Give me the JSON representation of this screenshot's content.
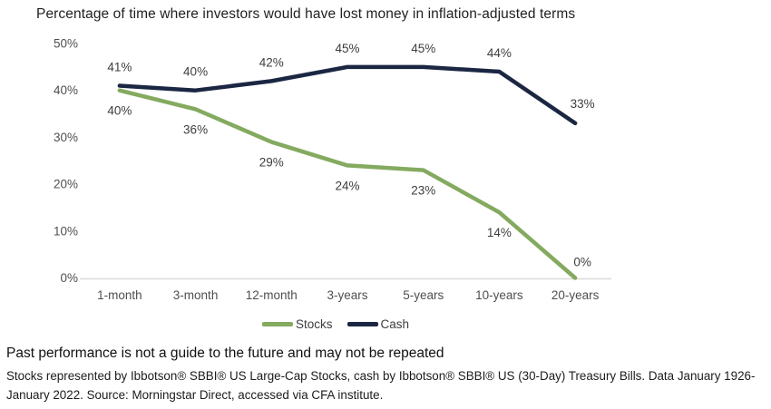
{
  "title": "Percentage of time where investors would have lost money in inflation-adjusted terms",
  "chart_data": {
    "type": "line",
    "categories": [
      "1-month",
      "3-month",
      "12-month",
      "3-years",
      "5-years",
      "10-years",
      "20-years"
    ],
    "series": [
      {
        "name": "Stocks",
        "color": "#84AA60",
        "label_position": "below",
        "values": [
          40,
          36,
          29,
          24,
          23,
          14,
          0
        ]
      },
      {
        "name": "Cash",
        "color": "#1B2742",
        "label_position": "above",
        "values": [
          41,
          40,
          42,
          45,
          45,
          44,
          33
        ]
      }
    ],
    "title": "Percentage of time where investors would have lost money in inflation-adjusted terms",
    "xlabel": "",
    "ylabel": "",
    "ylim": [
      0,
      50
    ],
    "yticks": [
      0,
      10,
      20,
      30,
      40,
      50
    ],
    "ytick_suffix": "%",
    "data_label_suffix": "%",
    "grid": false,
    "data_labels": true,
    "legend_position": "bottom",
    "axis_line_color": "#d9d9d9"
  },
  "footer": {
    "disclaimer": "Past performance is not a guide to the future and may not be repeated",
    "source": "Stocks represented by Ibbotson® SBBI® US Large-Cap Stocks, cash by Ibbotson® SBBI® US (30-Day) Treasury Bills. Data January 1926-January 2022. Source: Morningstar Direct, accessed via CFA institute."
  }
}
